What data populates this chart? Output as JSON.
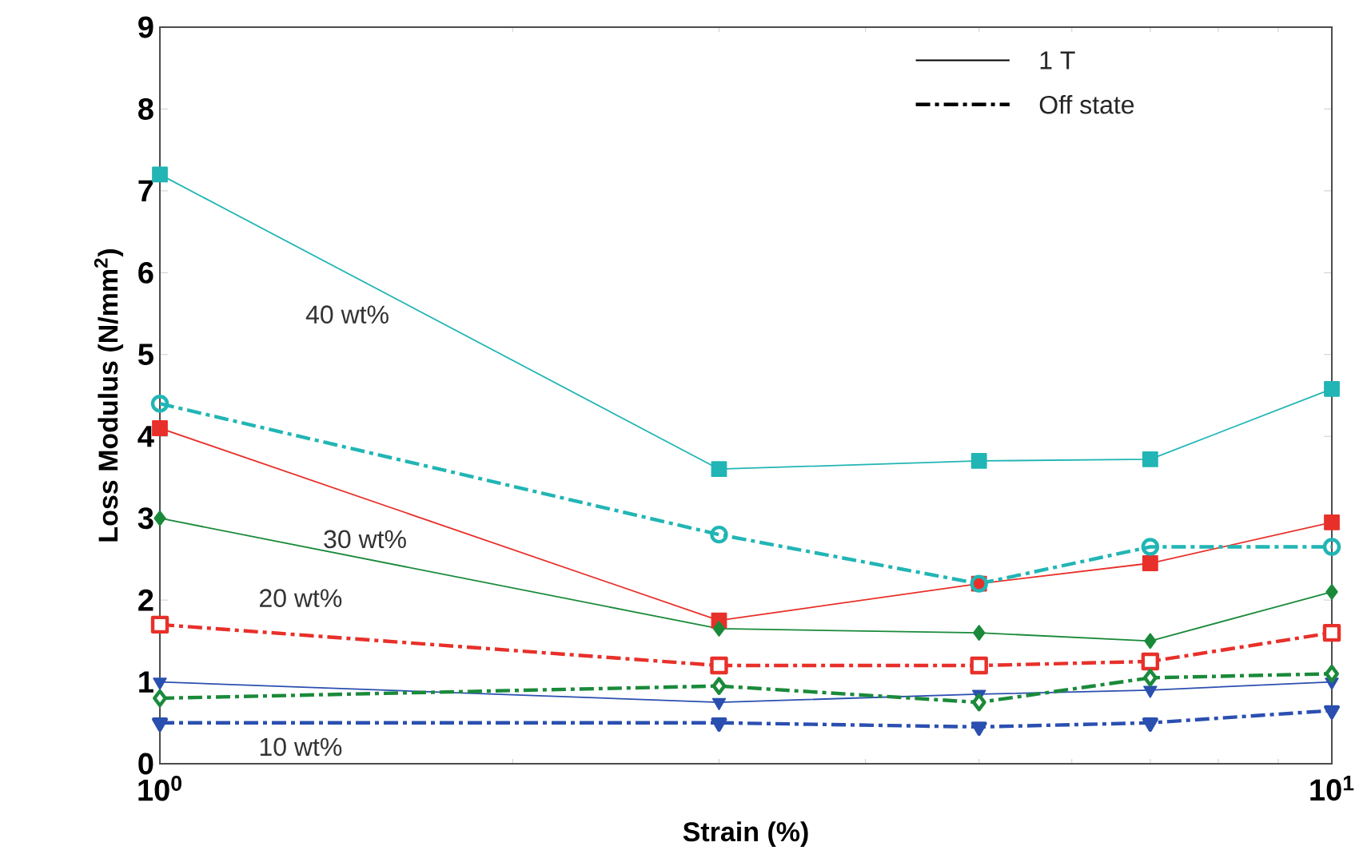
{
  "chart_data": {
    "type": "line",
    "xlabel": "Strain (%)",
    "ylabel": "Loss Modulus (N/mm$^{2}$)",
    "x": [
      1,
      3,
      5,
      7,
      10
    ],
    "xlim": [
      1,
      10
    ],
    "xticks": [
      {
        "value": 1,
        "label": "10$^{0}$"
      },
      {
        "value": 10,
        "label": "10$^{1}$"
      }
    ],
    "ylim": [
      0,
      9
    ],
    "yticks": [
      0,
      1,
      2,
      3,
      4,
      5,
      6,
      7,
      8,
      9
    ],
    "log": "x",
    "grid": false,
    "series": [
      {
        "color": "#22b5b5",
        "marker": "square",
        "line_style": "solid",
        "values": [
          7.2,
          3.6,
          3.7,
          3.72,
          4.58
        ]
      },
      {
        "color": "#22b5b5",
        "marker": "circle",
        "line_style": "dashed",
        "values": [
          4.4,
          2.8,
          2.2,
          2.65,
          2.65
        ]
      },
      {
        "color": "#e8302a",
        "marker": "square",
        "line_style": "solid",
        "values": [
          4.1,
          1.75,
          2.2,
          2.45,
          2.95
        ]
      },
      {
        "color": "#e8302a",
        "marker": "square",
        "line_style": "dashed",
        "values": [
          1.7,
          1.2,
          1.2,
          1.25,
          1.6
        ]
      },
      {
        "color": "#1a8a3a",
        "marker": "diamond",
        "line_style": "solid",
        "values": [
          3.0,
          1.65,
          1.6,
          1.5,
          2.1
        ]
      },
      {
        "color": "#1a8a3a",
        "marker": "diamond",
        "line_style": "dashed",
        "values": [
          0.8,
          0.95,
          0.75,
          1.05,
          1.1
        ]
      },
      {
        "color": "#2b4fb0",
        "marker": "triangle",
        "line_style": "solid",
        "values": [
          1.0,
          0.75,
          0.85,
          0.9,
          1.0
        ]
      },
      {
        "color": "#2b4fb0",
        "marker": "triangle",
        "line_style": "dashed",
        "values": [
          0.5,
          0.5,
          0.45,
          0.5,
          0.65
        ]
      }
    ],
    "annotations": [
      "1 T",
      "Off state",
      "40 wt%",
      "30 wt%",
      "20 wt%",
      "10 wt%"
    ]
  }
}
